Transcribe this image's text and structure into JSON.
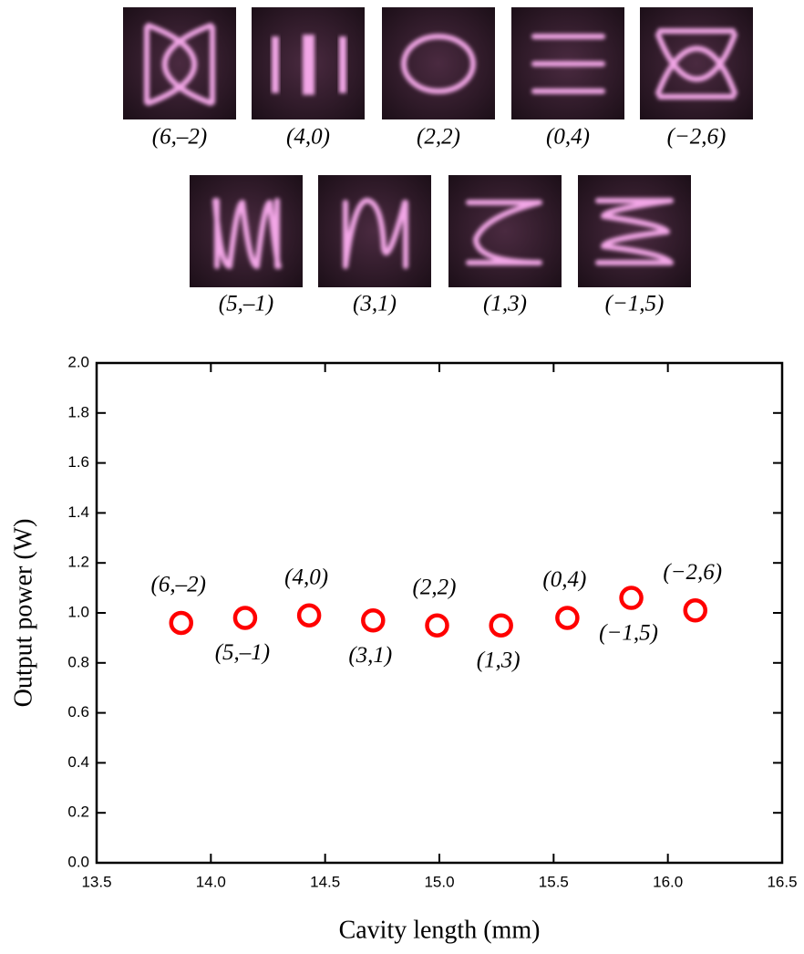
{
  "mode_patterns": {
    "row1": [
      "(6,–2)",
      "(4,0)",
      "(2,2)",
      "(0,4)",
      "(−2,6)"
    ],
    "row2": [
      "(5,–1)",
      "(3,1)",
      "(1,3)",
      "(−1,5)"
    ]
  },
  "chart_data": {
    "type": "scatter",
    "xlabel": "Cavity length (mm)",
    "ylabel": "Output power (W)",
    "x": [
      13.87,
      14.15,
      14.43,
      14.71,
      14.99,
      15.27,
      15.56,
      15.84,
      16.12
    ],
    "values": [
      0.96,
      0.98,
      0.99,
      0.97,
      0.95,
      0.95,
      0.98,
      1.06,
      1.01
    ],
    "point_labels": [
      "(6,–2)",
      "(5,–1)",
      "(4,0)",
      "(3,1)",
      "(2,2)",
      "(1,3)",
      "(0,4)",
      "(−1,5)",
      "(−2,6)"
    ],
    "color": "#ff0000",
    "xlim": [
      13.5,
      16.5
    ],
    "xticks": [
      13.5,
      {
        "value": 14,
        "label": "14.0"
      },
      14.5,
      {
        "value": 15,
        "label": "15.0"
      },
      15.5,
      {
        "value": 16,
        "label": "16.0"
      },
      16.5
    ],
    "ylim": [
      0,
      2
    ],
    "yticks": [
      {
        "value": 0,
        "label": "0.0"
      },
      0.2,
      0.4,
      0.6,
      0.8,
      {
        "value": 1,
        "label": "1.0"
      },
      1.2,
      1.4,
      1.6,
      1.8,
      {
        "value": 2,
        "label": "2.0"
      }
    ]
  }
}
